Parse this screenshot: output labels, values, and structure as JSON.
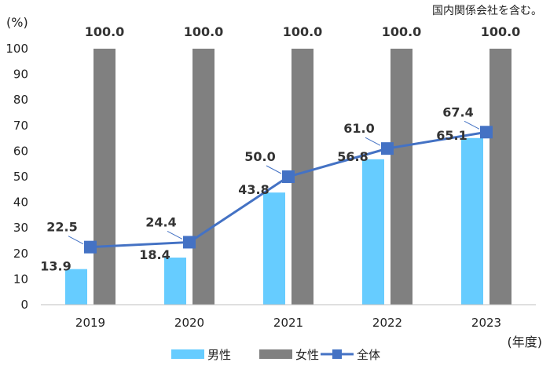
{
  "note": "国内関係会社を含む。",
  "chart_data": {
    "type": "bar",
    "categories": [
      "2019",
      "2020",
      "2021",
      "2022",
      "2023"
    ],
    "ylabel": "(%)",
    "xlabel": "(年度)",
    "ylim": [
      0,
      100
    ],
    "yticks": [
      0,
      10,
      20,
      30,
      40,
      50,
      60,
      70,
      80,
      90,
      100
    ],
    "grid": false,
    "legend": "bottom",
    "series": [
      {
        "name": "男性",
        "type": "bar",
        "color": "#66ccff",
        "values": [
          13.9,
          18.4,
          43.8,
          56.8,
          65.1
        ],
        "labels": [
          "13.9",
          "18.4",
          "43.8",
          "56.8",
          "65.1"
        ]
      },
      {
        "name": "女性",
        "type": "bar",
        "color": "#808080",
        "values": [
          100.0,
          100.0,
          100.0,
          100.0,
          100.0
        ],
        "labels": [
          "100.0",
          "100.0",
          "100.0",
          "100.0",
          "100.0"
        ]
      },
      {
        "name": "全体",
        "type": "line",
        "color": "#4472c4",
        "values": [
          22.5,
          24.4,
          50.0,
          61.0,
          67.4
        ],
        "labels": [
          "22.5",
          "24.4",
          "50.0",
          "61.0",
          "67.4"
        ]
      }
    ]
  }
}
